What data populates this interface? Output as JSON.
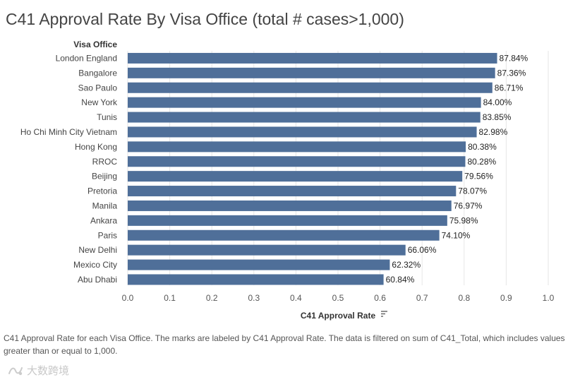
{
  "page": {
    "title": "C41 Approval Rate By Visa Office (total # cases>1,000)",
    "caption": "C41 Approval Rate for each Visa Office.  The marks are labeled by C41 Approval Rate. The data is filtered on sum of C41_Total, which includes values greater than or equal to 1,000.",
    "watermark_text": "大数跨境",
    "watermark_icon": "brand-logo-icon",
    "sort_icon": "sort-descending-icon"
  },
  "chart_data": {
    "type": "bar",
    "orientation": "horizontal",
    "title": "C41 Approval Rate By Visa Office (total # cases>1,000)",
    "ylabel": "Visa Office",
    "xlabel": "C41 Approval Rate",
    "xlim": [
      0,
      1.0
    ],
    "grid": true,
    "bar_color": "#4f6f99",
    "categories": [
      "London England",
      "Bangalore",
      "Sao Paulo",
      "New York",
      "Tunis",
      "Ho Chi Minh City Vietnam",
      "Hong Kong",
      "RROC",
      "Beijing",
      "Pretoria",
      "Manila",
      "Ankara",
      "Paris",
      "New Delhi",
      "Mexico City",
      "Abu Dhabi"
    ],
    "values": [
      0.8784,
      0.8736,
      0.8671,
      0.84,
      0.8385,
      0.8298,
      0.8038,
      0.8028,
      0.7956,
      0.7807,
      0.7697,
      0.7598,
      0.741,
      0.6606,
      0.6232,
      0.6084
    ],
    "data_labels": [
      "87.84%",
      "87.36%",
      "86.71%",
      "84.00%",
      "83.85%",
      "82.98%",
      "80.38%",
      "80.28%",
      "79.56%",
      "78.07%",
      "76.97%",
      "75.98%",
      "74.10%",
      "66.06%",
      "62.32%",
      "60.84%"
    ],
    "x_ticks": [
      0,
      0.1,
      0.2,
      0.3,
      0.4,
      0.5,
      0.6,
      0.7,
      0.8,
      0.9,
      1.0
    ],
    "x_tick_labels": [
      "0.0",
      "0.1",
      "0.2",
      "0.3",
      "0.4",
      "0.5",
      "0.6",
      "0.7",
      "0.8",
      "0.9",
      "1.0"
    ]
  }
}
